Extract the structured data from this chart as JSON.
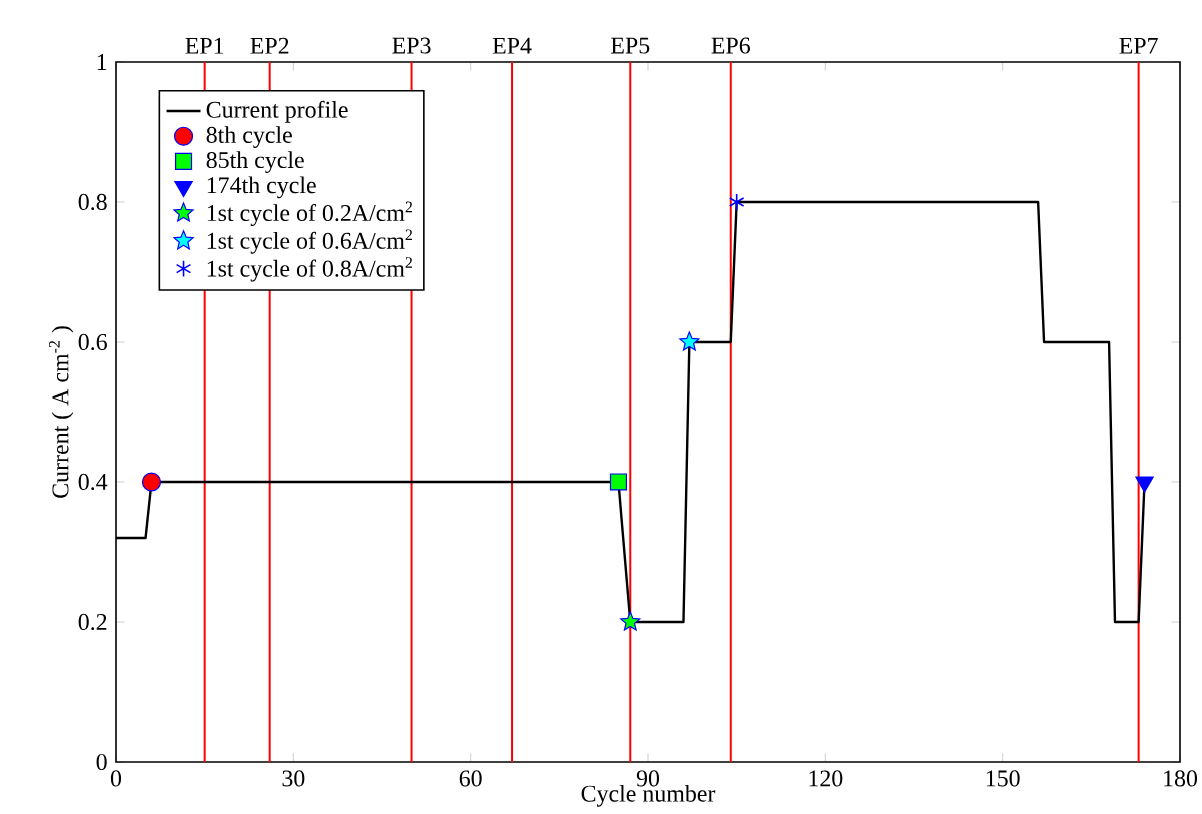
{
  "chart_data": {
    "type": "line",
    "xlabel": "Cycle number",
    "ylabel": "Current ( A cm$^{-2}$ )",
    "xlim": [
      0,
      180
    ],
    "ylim": [
      0,
      1
    ],
    "xticks": [
      0,
      30,
      60,
      90,
      120,
      150,
      180
    ],
    "yticks": [
      0,
      0.2,
      0.4,
      0.6,
      0.8,
      1
    ],
    "grid": false,
    "legend": "top left",
    "series": [
      {
        "name": "Current profile",
        "type": "line",
        "color": "#000000",
        "marker": "none",
        "x": [
          0,
          5,
          6,
          85,
          87,
          96,
          97,
          104,
          105,
          156,
          157,
          168,
          169,
          173,
          174
        ],
        "values": [
          0.32,
          0.32,
          0.4,
          0.4,
          0.2,
          0.2,
          0.6,
          0.6,
          0.8,
          0.8,
          0.6,
          0.6,
          0.2,
          0.2,
          0.4
        ]
      },
      {
        "name": "8th cycle",
        "type": "scatter",
        "color": "#ff0000",
        "marker": "circle",
        "x": [
          6
        ],
        "values": [
          0.4
        ]
      },
      {
        "name": "85th cycle",
        "type": "scatter",
        "color": "#00ff00",
        "marker": "square",
        "x": [
          85
        ],
        "values": [
          0.4
        ]
      },
      {
        "name": "174th cycle",
        "type": "scatter",
        "color": "#0000ff",
        "marker": "triangle",
        "x": [
          174
        ],
        "values": [
          0.4
        ]
      },
      {
        "name": "1st cycle of 0.2A/cm$^{2}$",
        "type": "scatter",
        "color": "#00ff00",
        "marker": "star",
        "x": [
          87
        ],
        "values": [
          0.2
        ]
      },
      {
        "name": "1st cycle of 0.6A/cm$^{2}$",
        "type": "scatter",
        "color": "#00ffff",
        "marker": "star",
        "x": [
          97
        ],
        "values": [
          0.6
        ]
      },
      {
        "name": "1st cycle of 0.8A/cm$^{2}$",
        "type": "scatter",
        "color": "#0000ff",
        "marker": "cross",
        "x": [
          105
        ],
        "values": [
          0.8
        ]
      }
    ],
    "ref_lines": [
      {
        "axis": "x",
        "value": 15,
        "label": "EP1",
        "color": "#ff0000"
      },
      {
        "axis": "x",
        "value": 26,
        "label": "EP2",
        "color": "#ff0000"
      },
      {
        "axis": "x",
        "value": 50,
        "label": "EP3",
        "color": "#ff0000"
      },
      {
        "axis": "x",
        "value": 67,
        "label": "EP4",
        "color": "#ff0000"
      },
      {
        "axis": "x",
        "value": 87,
        "label": "EP5",
        "color": "#ff0000"
      },
      {
        "axis": "x",
        "value": 104,
        "label": "EP6",
        "color": "#ff0000"
      },
      {
        "axis": "x",
        "value": 173,
        "label": "EP7",
        "color": "#ff0000"
      }
    ]
  }
}
